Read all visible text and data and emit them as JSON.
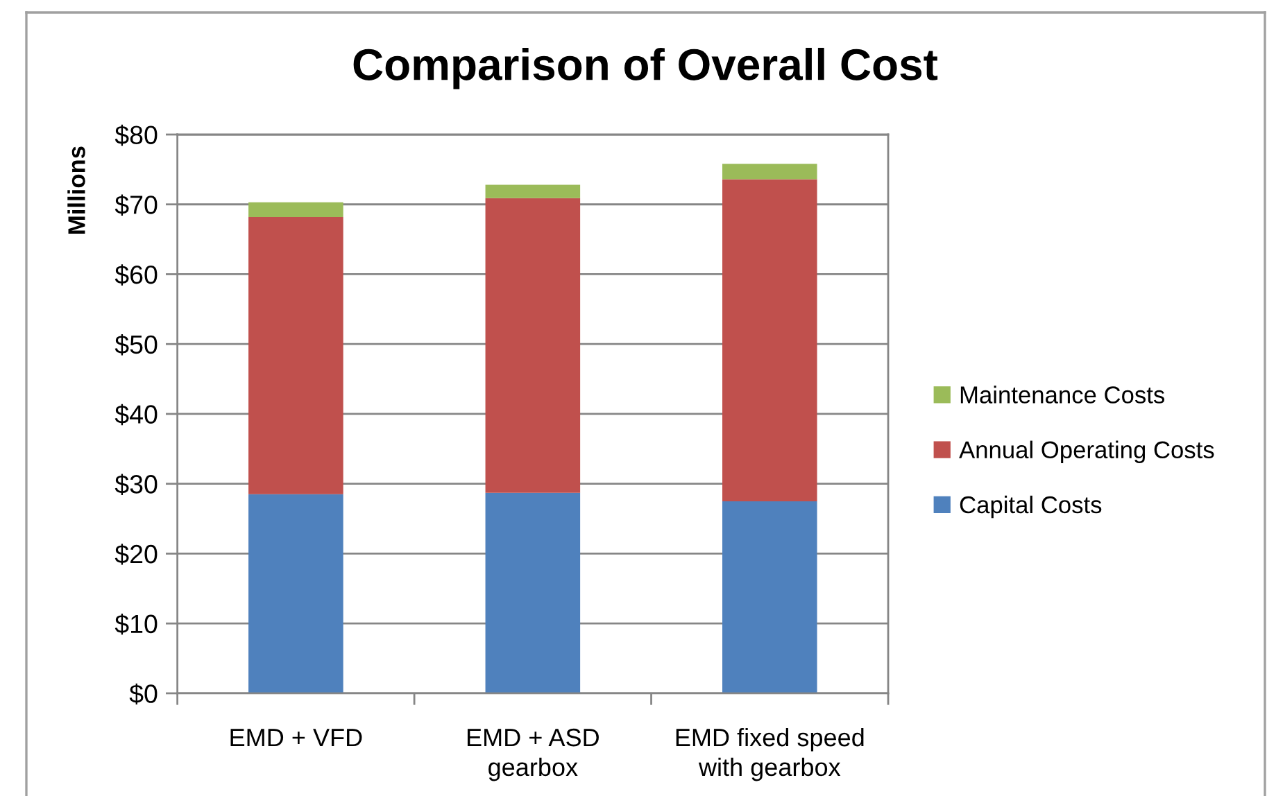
{
  "chart_data": {
    "type": "bar",
    "title": "Comparison of Overall Cost",
    "ylabel": "Millions",
    "categories": [
      "EMD + VFD",
      "EMD + ASD\ngearbox",
      "EMD fixed speed\nwith gearbox"
    ],
    "stacked": true,
    "series": [
      {
        "name": "Capital Costs",
        "color": "#4f81bd",
        "values": [
          28.5,
          28.7,
          27.5
        ]
      },
      {
        "name": "Annual Operating Costs",
        "color": "#c0504d",
        "values": [
          39.7,
          42.2,
          46.1
        ]
      },
      {
        "name": "Maintenance Costs",
        "color": "#9bbb59",
        "values": [
          2.1,
          1.9,
          2.2
        ]
      }
    ],
    "ylim": [
      0,
      80
    ],
    "yticks": [
      {
        "value": 0,
        "label": "$0"
      },
      {
        "value": 10,
        "label": "$10"
      },
      {
        "value": 20,
        "label": "$20"
      },
      {
        "value": 30,
        "label": "$30"
      },
      {
        "value": 40,
        "label": "$40"
      },
      {
        "value": 50,
        "label": "$50"
      },
      {
        "value": 60,
        "label": "$60"
      },
      {
        "value": 70,
        "label": "$70"
      },
      {
        "value": 80,
        "label": "$80"
      }
    ],
    "grid": "y",
    "legend": "right"
  }
}
